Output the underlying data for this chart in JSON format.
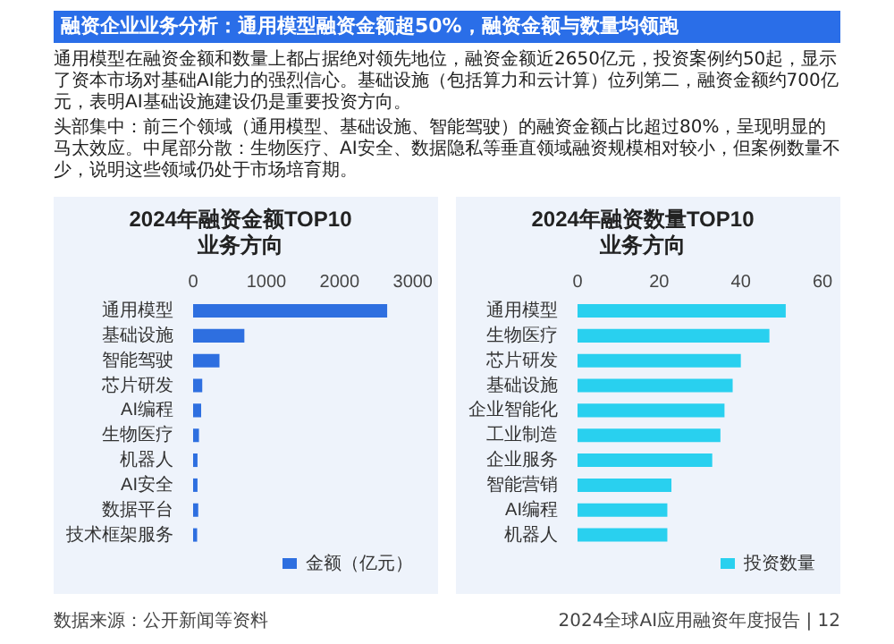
{
  "chart_data": [
    {
      "type": "other",
      "title": "融资企业业务分析：通用模型融资金额超50%，融资金额与数量均领跑",
      "annotations": [
        "通用模型在融资金额和数量上都占据绝对领先地位，融资金额近2650亿元，投资案例约50起，显示了资本市场对基础AI能力的强烈信心。基础设施（包括算力和云计算）位列第二，融资金额约700亿元，表明AI基础设施建设仍是重要投资方向。",
        "头部集中：前三个领域（通用模型、基础设施、智能驾驶）的融资金额占比超过80%，呈现明显的马太效应。中尾部分散：生物医疗、AI安全、数据隐私等垂直领域融资规模相对较小，但案例数量不少，说明这些领域仍处于市场培育期。",
        "数据来源：公开新闻等资料",
        "2024全球AI应用融资年度报告 | 12"
      ]
    },
    {
      "type": "bar",
      "orientation": "horizontal",
      "title": "2024年融资金额TOP10\n业务方向",
      "categories": [
        "通用模型",
        "基础设施",
        "智能驾驶",
        "芯片研发",
        "AI编程",
        "生物医疗",
        "机器人",
        "AI安全",
        "数据平台",
        "技术框架服务"
      ],
      "series": [
        {
          "name": "金额（亿元）",
          "color": "#2e6fe0",
          "values": [
            2650,
            700,
            360,
            125,
            110,
            80,
            60,
            60,
            70,
            55
          ]
        }
      ],
      "xlim": [
        0,
        3000
      ],
      "xticks": [
        0,
        1000,
        2000,
        3000
      ],
      "grid": false,
      "legend": "bottom right"
    },
    {
      "type": "bar",
      "orientation": "horizontal",
      "title": "2024年融资数量TOP10\n业务方向",
      "categories": [
        "通用模型",
        "生物医疗",
        "芯片研发",
        "基础设施",
        "企业智能化",
        "工业制造",
        "企业服务",
        "智能营销",
        "AI编程",
        "机器人"
      ],
      "series": [
        {
          "name": "投资数量",
          "color": "#29d0ef",
          "values": [
            51,
            47,
            40,
            38,
            36,
            35,
            33,
            23,
            22,
            22
          ]
        }
      ],
      "xlim": [
        0,
        60
      ],
      "xticks": [
        0,
        20,
        40,
        60
      ],
      "grid": false,
      "legend": "bottom right"
    }
  ]
}
